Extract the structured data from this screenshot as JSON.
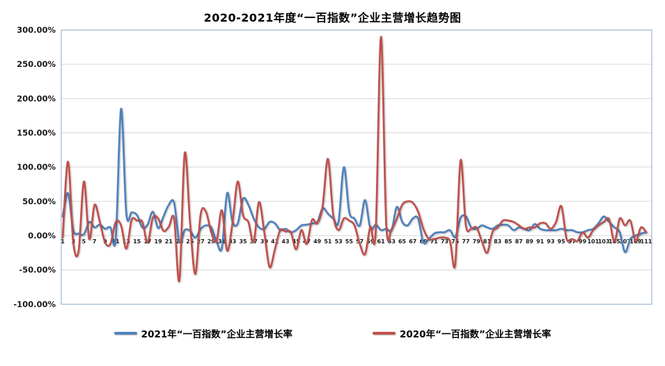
{
  "title": "2020-2021年度“一百指数”企业主营增长趋势图",
  "colors": {
    "series_2021": "#4F81BD",
    "series_2020": "#C0504D",
    "gridline": "#D6D6D6",
    "plot_border": "#B4C7E0",
    "axis_text": "#1a1a1a"
  },
  "chart_data": {
    "type": "line",
    "title": "2020-2021年度“一百指数”企业主营增长趋势图",
    "xlabel": "",
    "ylabel": "",
    "ylim": [
      -100,
      300
    ],
    "y_tick_step": 50,
    "y_tick_labels": [
      "300.00%",
      "250.00%",
      "200.00%",
      "150.00%",
      "100.00%",
      "50.00%",
      "0.00%",
      "-50.00%",
      "-100.00%"
    ],
    "x_range": [
      1,
      111
    ],
    "x_tick_labels": [
      1,
      3,
      5,
      7,
      9,
      11,
      13,
      15,
      17,
      19,
      21,
      23,
      25,
      27,
      29,
      31,
      33,
      35,
      37,
      39,
      41,
      43,
      45,
      47,
      49,
      51,
      53,
      55,
      57,
      59,
      61,
      63,
      65,
      67,
      69,
      71,
      73,
      75,
      77,
      79,
      81,
      83,
      85,
      87,
      89,
      91,
      93,
      95,
      97,
      99,
      101,
      103,
      105,
      107,
      109,
      111
    ],
    "grid": true,
    "smooth_lines": true,
    "legend_position": "bottom",
    "series": [
      {
        "name": "2021年“一百指数”企业主营增长率",
        "color": "#4F81BD",
        "values": [
          28,
          62,
          8,
          3,
          2,
          20,
          12,
          16,
          10,
          12,
          -5,
          185,
          32,
          34,
          30,
          12,
          16,
          35,
          11,
          28,
          45,
          48,
          -9,
          8,
          7,
          -3,
          10,
          15,
          12,
          -8,
          -18,
          62,
          20,
          18,
          54,
          45,
          25,
          12,
          10,
          20,
          18,
          8,
          10,
          5,
          8,
          15,
          16,
          18,
          20,
          40,
          32,
          25,
          20,
          100,
          35,
          25,
          15,
          52,
          10,
          16,
          8,
          10,
          8,
          42,
          20,
          15,
          25,
          25,
          -10,
          -5,
          3,
          5,
          5,
          8,
          -2,
          26,
          28,
          12,
          10,
          15,
          12,
          10,
          15,
          16,
          15,
          8,
          12,
          10,
          8,
          17,
          10,
          8,
          8,
          8,
          10,
          8,
          8,
          5,
          5,
          8,
          10,
          18,
          28,
          20,
          12,
          5,
          -24,
          -5,
          0,
          3,
          5
        ]
      },
      {
        "name": "2020年“一百指数”企业主营增长率",
        "color": "#C0504D",
        "values": [
          -3,
          108,
          -10,
          -22,
          79,
          -5,
          45,
          20,
          -10,
          -12,
          20,
          15,
          -19,
          23,
          22,
          20,
          -10,
          26,
          25,
          7,
          13,
          25,
          -65,
          120,
          20,
          -56,
          31,
          35,
          5,
          -8,
          37,
          -22,
          18,
          79,
          30,
          20,
          -9,
          49,
          5,
          -46,
          -20,
          8,
          6,
          5,
          -20,
          8,
          -12,
          23,
          18,
          43,
          112,
          30,
          8,
          25,
          22,
          15,
          -12,
          -27,
          13,
          5,
          290,
          15,
          10,
          25,
          45,
          50,
          48,
          35,
          10,
          -5,
          -5,
          -3,
          -3,
          -8,
          -42,
          110,
          15,
          10,
          12,
          -8,
          -25,
          5,
          12,
          22,
          22,
          20,
          15,
          10,
          12,
          12,
          18,
          18,
          10,
          20,
          43,
          -5,
          -5,
          -8,
          5,
          -3,
          8,
          15,
          20,
          24,
          -9,
          25,
          15,
          22,
          -8,
          12,
          5
        ]
      }
    ]
  }
}
